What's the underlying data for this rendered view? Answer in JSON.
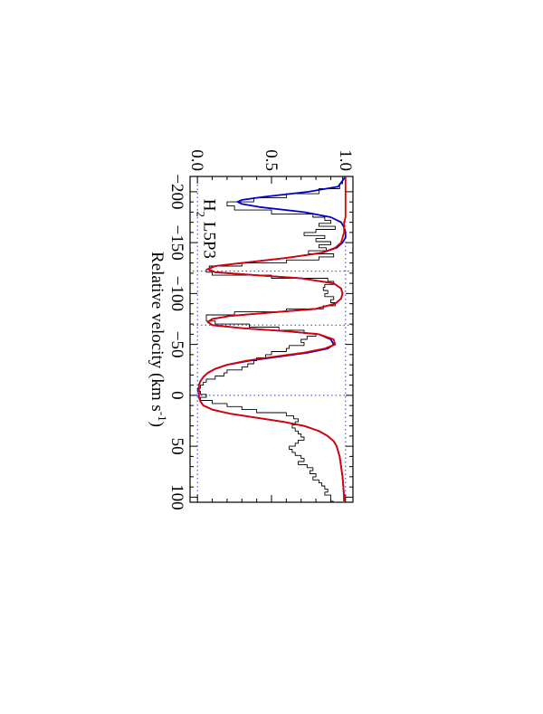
{
  "chart_data": {
    "type": "line",
    "orientation": "rotated-90-cw",
    "title": "",
    "xlabel": "Relative velocity (km s⁻¹)",
    "xlabel_parts": {
      "main": "Relative velocity (km s",
      "sup": "-1",
      "close": ")"
    },
    "ylabel": "",
    "xlim": [
      -215,
      105
    ],
    "ylim": [
      -0.05,
      1.05
    ],
    "x_ticks": [
      -200,
      -150,
      -100,
      -50,
      0,
      50,
      100
    ],
    "x_tick_labels": [
      "−200",
      "−150",
      "−100",
      "−50",
      "0",
      "50",
      "100"
    ],
    "y_ticks": [
      0.0,
      0.5,
      1.0
    ],
    "y_tick_labels": [
      "0.0",
      "0.5",
      "1.0"
    ],
    "annotation": {
      "species": "H",
      "subscript": "2",
      "transition": " L5P3"
    },
    "reference_lines": {
      "zero_level": 0.0,
      "continuum_level": 1.0,
      "component_velocities": [
        -122,
        -69,
        0
      ]
    },
    "series": [
      {
        "color": "#000000",
        "style": "step",
        "x": [
          -215,
          -208,
          -203,
          -198,
          -194,
          -190,
          -186,
          -182,
          -178,
          -175,
          -172,
          -169,
          -166,
          -163,
          -160,
          -157,
          -154,
          -151,
          -148,
          -145,
          -142,
          -139,
          -136,
          -133,
          -130,
          -127,
          -124,
          -121,
          -118,
          -115,
          -112,
          -109,
          -106,
          -103,
          -100,
          -97,
          -94,
          -91,
          -88,
          -85,
          -82,
          -79,
          -76,
          -73,
          -70,
          -67,
          -64,
          -61,
          -58,
          -55,
          -52,
          -49,
          -46,
          -43,
          -40,
          -37,
          -34,
          -31,
          -28,
          -25,
          -22,
          -19,
          -16,
          -13,
          -10,
          -7,
          -4,
          -1,
          2,
          5,
          8,
          11,
          14,
          17,
          20,
          23,
          26,
          29,
          32,
          35,
          38,
          41,
          44,
          47,
          50,
          53,
          56,
          59,
          62,
          65,
          68,
          71,
          74,
          77,
          80,
          83,
          86,
          89,
          92,
          95,
          98,
          101,
          104
        ],
        "y": [
          0.98,
          0.96,
          0.82,
          0.6,
          0.38,
          0.2,
          0.25,
          0.5,
          0.78,
          0.86,
          0.9,
          0.82,
          0.93,
          0.8,
          0.72,
          0.86,
          0.8,
          0.9,
          0.82,
          0.87,
          0.75,
          0.92,
          0.82,
          0.6,
          0.3,
          0.08,
          0.06,
          0.1,
          0.5,
          0.88,
          0.92,
          0.86,
          0.85,
          0.88,
          0.86,
          0.92,
          0.9,
          0.93,
          0.85,
          0.6,
          0.25,
          0.06,
          0.06,
          0.12,
          0.35,
          0.55,
          0.72,
          0.8,
          0.74,
          0.7,
          0.72,
          0.62,
          0.6,
          0.5,
          0.46,
          0.4,
          0.38,
          0.34,
          0.3,
          0.2,
          0.18,
          0.12,
          0.06,
          0.04,
          0.02,
          0.0,
          0.02,
          0.06,
          0.02,
          0.1,
          0.2,
          0.3,
          0.4,
          0.6,
          0.65,
          0.68,
          0.66,
          0.64,
          0.66,
          0.68,
          0.7,
          0.72,
          0.68,
          0.66,
          0.62,
          0.64,
          0.66,
          0.7,
          0.72,
          0.68,
          0.74,
          0.78,
          0.76,
          0.8,
          0.78,
          0.82,
          0.84,
          0.86,
          0.88,
          0.86,
          0.9,
          0.9,
          0.92
        ]
      },
      {
        "color": "#0000cc",
        "style": "smooth",
        "x": [
          -215,
          -205,
          -200,
          -195,
          -192,
          -190,
          -188,
          -185,
          -180,
          -175,
          -170,
          -165,
          -160,
          -155,
          -150,
          -145,
          -140,
          -135,
          -130,
          -127,
          -124,
          -121,
          -118,
          -115,
          -110,
          -105,
          -100,
          -95,
          -90,
          -85,
          -82,
          -78,
          -75,
          -72,
          -69,
          -66,
          -63,
          -60,
          -55,
          -50,
          -46,
          -42,
          -38,
          -34,
          -30,
          -26,
          -22,
          -18,
          -14,
          -10,
          -6,
          -2,
          2,
          6,
          10,
          14,
          18,
          22,
          26,
          30,
          35,
          40,
          45,
          50,
          60,
          70,
          80,
          90,
          100,
          104
        ],
        "y": [
          1.0,
          0.95,
          0.75,
          0.45,
          0.3,
          0.27,
          0.3,
          0.42,
          0.72,
          0.9,
          0.97,
          0.99,
          1.0,
          1.0,
          0.98,
          0.94,
          0.84,
          0.6,
          0.3,
          0.12,
          0.07,
          0.12,
          0.4,
          0.7,
          0.92,
          0.97,
          0.98,
          0.97,
          0.93,
          0.8,
          0.55,
          0.22,
          0.1,
          0.07,
          0.1,
          0.3,
          0.6,
          0.82,
          0.9,
          0.92,
          0.88,
          0.75,
          0.55,
          0.35,
          0.2,
          0.12,
          0.07,
          0.04,
          0.02,
          0.01,
          0.01,
          0.01,
          0.01,
          0.02,
          0.04,
          0.1,
          0.22,
          0.4,
          0.58,
          0.72,
          0.82,
          0.88,
          0.92,
          0.94,
          0.96,
          0.97,
          0.98,
          0.985,
          0.99,
          0.99
        ]
      },
      {
        "color": "#dd0000",
        "style": "smooth",
        "x": [
          -215,
          -205,
          -200,
          -195,
          -190,
          -185,
          -180,
          -175,
          -170,
          -165,
          -160,
          -155,
          -150,
          -145,
          -140,
          -135,
          -130,
          -127,
          -124,
          -121,
          -118,
          -115,
          -110,
          -105,
          -100,
          -95,
          -90,
          -85,
          -82,
          -78,
          -75,
          -72,
          -69,
          -66,
          -63,
          -60,
          -55,
          -50,
          -46,
          -42,
          -38,
          -34,
          -30,
          -26,
          -22,
          -18,
          -14,
          -10,
          -6,
          -2,
          2,
          6,
          10,
          14,
          18,
          22,
          26,
          30,
          35,
          40,
          45,
          50,
          60,
          70,
          80,
          90,
          100,
          104
        ],
        "y": [
          1.0,
          1.0,
          1.0,
          1.0,
          1.0,
          1.0,
          1.0,
          1.0,
          0.99,
          0.99,
          0.99,
          0.98,
          0.97,
          0.93,
          0.84,
          0.6,
          0.3,
          0.12,
          0.07,
          0.12,
          0.4,
          0.7,
          0.92,
          0.97,
          0.98,
          0.97,
          0.93,
          0.8,
          0.55,
          0.22,
          0.1,
          0.07,
          0.1,
          0.3,
          0.6,
          0.82,
          0.92,
          0.93,
          0.86,
          0.72,
          0.52,
          0.33,
          0.2,
          0.12,
          0.07,
          0.04,
          0.02,
          0.01,
          0.01,
          0.01,
          0.01,
          0.02,
          0.04,
          0.1,
          0.22,
          0.4,
          0.58,
          0.72,
          0.82,
          0.88,
          0.92,
          0.94,
          0.96,
          0.97,
          0.98,
          0.985,
          0.99,
          0.99
        ]
      }
    ]
  }
}
